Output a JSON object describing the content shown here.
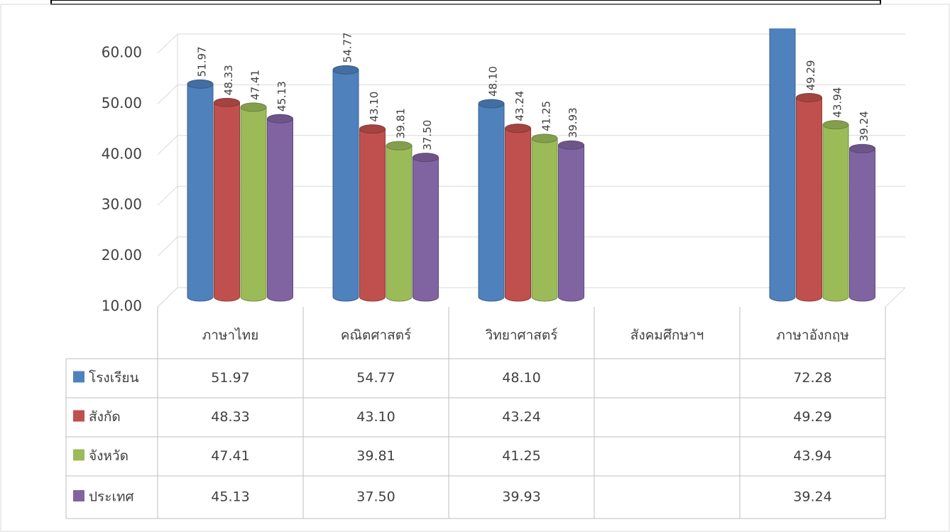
{
  "chart_data": {
    "type": "bar",
    "categories": [
      "ภาษาไทย",
      "คณิตศาสตร์",
      "วิทยาศาสตร์",
      "สังคมศึกษาฯ",
      "ภาษาอังกฤษ"
    ],
    "series": [
      {
        "name": "โรงเรียน",
        "color": "#4f81bd",
        "values": [
          51.97,
          54.77,
          48.1,
          null,
          72.28
        ],
        "value_labels": [
          "51.97",
          "54.77",
          "48.10",
          null,
          "72.28"
        ]
      },
      {
        "name": "สังกัด",
        "color": "#c0504d",
        "values": [
          48.33,
          43.1,
          43.24,
          null,
          49.29
        ],
        "value_labels": [
          "48.33",
          "43.10",
          "43.24",
          null,
          "49.29"
        ]
      },
      {
        "name": "จังหวัด",
        "color": "#9bbb59",
        "values": [
          47.41,
          39.81,
          41.25,
          null,
          43.94
        ],
        "value_labels": [
          "47.41",
          "39.81",
          "41.25",
          null,
          "43.94"
        ]
      },
      {
        "name": "ประเทศ",
        "color": "#8064a2",
        "values": [
          45.13,
          37.5,
          39.93,
          null,
          39.24
        ],
        "value_labels": [
          "45.13",
          "37.50",
          "39.93",
          null,
          "39.24"
        ]
      }
    ],
    "ylim": [
      10,
      60
    ],
    "yticks": [
      {
        "value": 10,
        "label": "10.00"
      },
      {
        "value": 20,
        "label": "20.00"
      },
      {
        "value": 30,
        "label": "30.00"
      },
      {
        "value": 40,
        "label": "40.00"
      },
      {
        "value": 50,
        "label": "50.00"
      },
      {
        "value": 60,
        "label": "60.00"
      }
    ],
    "grid": true
  }
}
